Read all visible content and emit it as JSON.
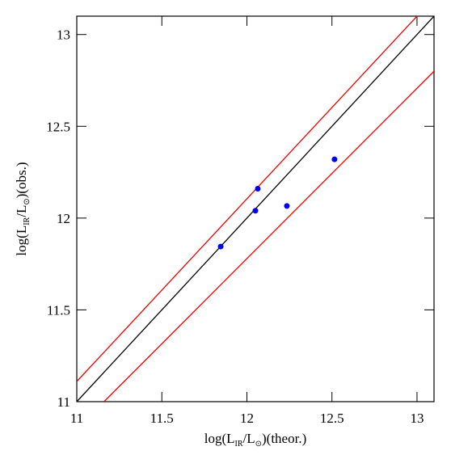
{
  "chart_data": {
    "type": "scatter",
    "x_label_parts": [
      "log(L",
      "IR",
      "/L",
      "⊙",
      ")(theor.)"
    ],
    "y_label_parts": [
      "log(L",
      "IR",
      "/L",
      "⊙",
      ")(obs.)"
    ],
    "xlim": [
      11,
      13.1
    ],
    "ylim": [
      11,
      13.1
    ],
    "xticks": [
      11,
      11.5,
      12,
      12.5,
      13
    ],
    "yticks": [
      11,
      11.5,
      12,
      12.5,
      13
    ],
    "series": [
      {
        "color": "#0000ee",
        "x": [
          11.846,
          12.05,
          12.064,
          12.235,
          12.515
        ],
        "values": [
          11.845,
          12.04,
          12.16,
          12.066,
          12.32
        ]
      }
    ],
    "lines": [
      {
        "color": "#000000",
        "x": [
          11,
          13.1
        ],
        "values": [
          11,
          13.1
        ]
      },
      {
        "color": "#ee0000",
        "x": [
          11,
          13
        ],
        "values": [
          11.11,
          13.1
        ]
      },
      {
        "color": "#ee0000",
        "x": [
          11.16,
          13.1
        ],
        "values": [
          11,
          12.8
        ]
      }
    ]
  }
}
